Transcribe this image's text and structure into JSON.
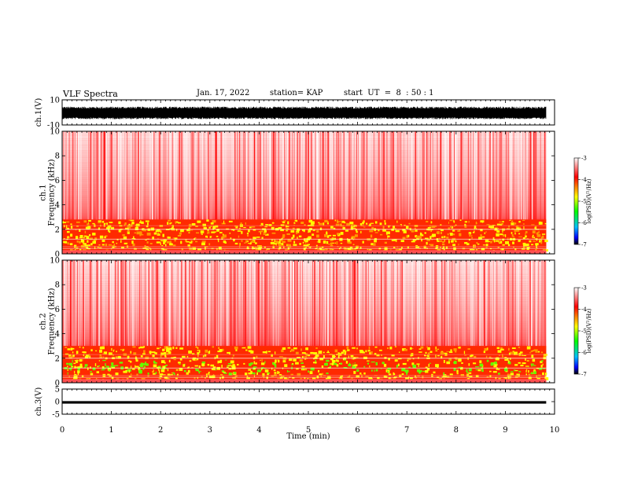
{
  "header": {
    "title": "VLF Spectra",
    "date": "Jan. 17, 2022",
    "station": "station= KAP",
    "start": "start  UT  =  8  : 50 : 1"
  },
  "chart_data": [
    {
      "type": "line",
      "panel": "ch1-waveform",
      "ylabel": "ch.1(V)",
      "xlim": [
        0,
        10
      ],
      "ylim": [
        -10,
        10
      ],
      "yticks": [
        "10",
        "-10"
      ],
      "data_end_min": 9.83,
      "description_values": {
        "amplitude_range_V": [
          -5,
          4
        ]
      }
    },
    {
      "type": "heatmap",
      "panel": "ch1-spectrogram",
      "ylabel": "ch.1\nFrequency (kHz)",
      "ylabel_lines": [
        "ch.1",
        "Frequency (kHz)"
      ],
      "xlim": [
        0,
        10
      ],
      "ylim": [
        0,
        10
      ],
      "yticks": [
        "0",
        "2",
        "4",
        "6",
        "8",
        "10"
      ],
      "data_end_min": 9.83,
      "band_kHz": [
        0.3,
        2.8
      ],
      "colorbar": {
        "label": "log(PSD)(V²/Hz)",
        "range": [
          -7,
          -3
        ],
        "ticks": [
          "-3",
          "-4",
          "-5",
          "-6",
          "-7"
        ]
      }
    },
    {
      "type": "heatmap",
      "panel": "ch2-spectrogram",
      "ylabel": "ch.2\nFrequency (kHz)",
      "ylabel_lines": [
        "ch.2",
        "Frequency (kHz)"
      ],
      "xlim": [
        0,
        10
      ],
      "ylim": [
        0,
        10
      ],
      "yticks": [
        "0",
        "2",
        "4",
        "6",
        "8",
        "10"
      ],
      "data_end_min": 9.83,
      "band_kHz": [
        0.3,
        3.0
      ],
      "colorbar": {
        "label": "log(PSD)(V²/Hz)",
        "range": [
          -7,
          -3
        ],
        "ticks": [
          "-3",
          "-4",
          "-5",
          "-6",
          "-7"
        ]
      }
    },
    {
      "type": "line",
      "panel": "ch3-waveform",
      "ylabel": "ch.3(V)",
      "xlim": [
        0,
        10
      ],
      "ylim": [
        -5,
        5
      ],
      "yticks": [
        "5",
        "0",
        "-5"
      ],
      "data_end_min": 9.83,
      "level_V": -0.3
    }
  ],
  "xaxis": {
    "label": "Time  (min)",
    "ticks": [
      "0",
      "1",
      "2",
      "3",
      "4",
      "5",
      "6",
      "7",
      "8",
      "9",
      "10"
    ]
  },
  "colors": {
    "high": "#ff0000",
    "mid": "#ffff00",
    "green": "#00ff00",
    "low": "#0000ff",
    "trace": "#000000"
  }
}
